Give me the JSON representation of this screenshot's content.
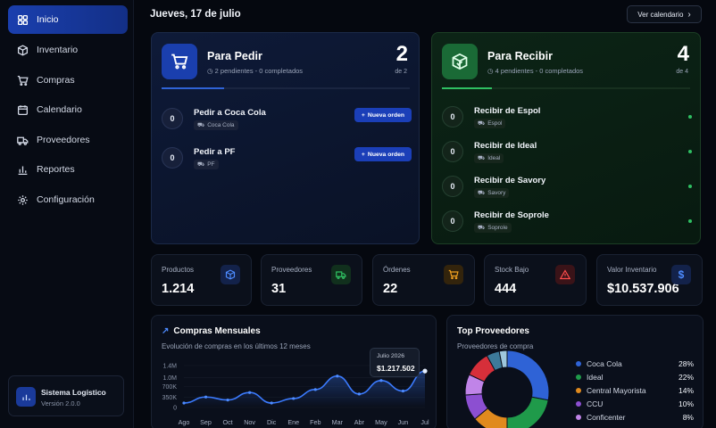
{
  "sidebar": {
    "items": [
      {
        "label": "Inicio",
        "icon": "grid-icon"
      },
      {
        "label": "Inventario",
        "icon": "box-icon"
      },
      {
        "label": "Compras",
        "icon": "cart-icon"
      },
      {
        "label": "Calendario",
        "icon": "calendar-icon"
      },
      {
        "label": "Proveedores",
        "icon": "truck-icon"
      },
      {
        "label": "Reportes",
        "icon": "bar-chart-icon"
      },
      {
        "label": "Configuración",
        "icon": "gear-icon"
      }
    ],
    "system_name": "Sistema Logístico",
    "system_version": "Versión 2.0.0"
  },
  "header": {
    "date": "Jueves, 17 de julio",
    "calendar_button": "Ver calendario"
  },
  "pedir": {
    "title": "Para Pedir",
    "subtitle": "2 pendientes - 0 completados",
    "count": "2",
    "of": "de 2",
    "progress": 0.25,
    "button_label": "Nueva orden",
    "rows": [
      {
        "qty": "0",
        "name": "Pedir a Coca Cola",
        "supplier": "Coca Cola"
      },
      {
        "qty": "0",
        "name": "Pedir a PF",
        "supplier": "PF"
      }
    ]
  },
  "recibir": {
    "title": "Para Recibir",
    "subtitle": "4 pendientes - 0 completados",
    "count": "4",
    "of": "de 4",
    "progress": 0.2,
    "rows": [
      {
        "qty": "0",
        "name": "Recibir de Espol",
        "supplier": "Espol"
      },
      {
        "qty": "0",
        "name": "Recibir de Ideal",
        "supplier": "Ideal"
      },
      {
        "qty": "0",
        "name": "Recibir de Savory",
        "supplier": "Savory"
      },
      {
        "qty": "0",
        "name": "Recibir de Soprole",
        "supplier": "Soprole"
      }
    ]
  },
  "kpis": [
    {
      "label": "Productos",
      "value": "1.214",
      "icon": "cube-icon",
      "color": "#3b7bff"
    },
    {
      "label": "Proveedores",
      "value": "31",
      "icon": "truck-icon",
      "color": "#2fbf62"
    },
    {
      "label": "Órdenes",
      "value": "22",
      "icon": "cart-icon",
      "color": "#f0a020"
    },
    {
      "label": "Stock Bajo",
      "value": "444",
      "icon": "warning-icon",
      "color": "#ff4d4d"
    },
    {
      "label": "Valor Inventario",
      "value": "$10.537.906",
      "icon": "dollar-icon",
      "color": "#3b7bff"
    }
  ],
  "monthly": {
    "title": "Compras Mensuales",
    "subtitle": "Evolución de compras en los últimos 12 meses",
    "tooltip_label": "Julio 2026",
    "tooltip_value": "$1.217.502"
  },
  "chart_data": {
    "type": "line",
    "categories": [
      "Ago",
      "Sep",
      "Oct",
      "Nov",
      "Dic",
      "Ene",
      "Feb",
      "Mar",
      "Abr",
      "May",
      "Jun",
      "Jul"
    ],
    "y_ticks": [
      "1.4M",
      "1.0M",
      "700K",
      "350K",
      "0"
    ],
    "ylim": [
      0,
      1400000
    ],
    "values": [
      150000,
      350000,
      250000,
      500000,
      150000,
      300000,
      600000,
      1050000,
      450000,
      900000,
      550000,
      1217502
    ],
    "color": "#3b7bff"
  },
  "providers": {
    "title": "Top Proveedores",
    "subtitle": "Proveedores de compra",
    "items": [
      {
        "name": "Coca Cola",
        "pct": "28%",
        "value": 28,
        "color": "#2f63d6"
      },
      {
        "name": "Ideal",
        "pct": "22%",
        "value": 22,
        "color": "#1f9a4a"
      },
      {
        "name": "Central Mayorista",
        "pct": "14%",
        "value": 14,
        "color": "#e08a1e"
      },
      {
        "name": "CCU",
        "pct": "10%",
        "value": 10,
        "color": "#8c4fd1"
      },
      {
        "name": "Conficenter",
        "pct": "8%",
        "value": 8,
        "color": "#c084e8"
      }
    ],
    "other_slices": [
      {
        "value": 10,
        "color": "#d62f3a"
      },
      {
        "value": 5,
        "color": "#3d7a9a"
      },
      {
        "value": 3,
        "color": "#9ec6dc"
      }
    ]
  }
}
